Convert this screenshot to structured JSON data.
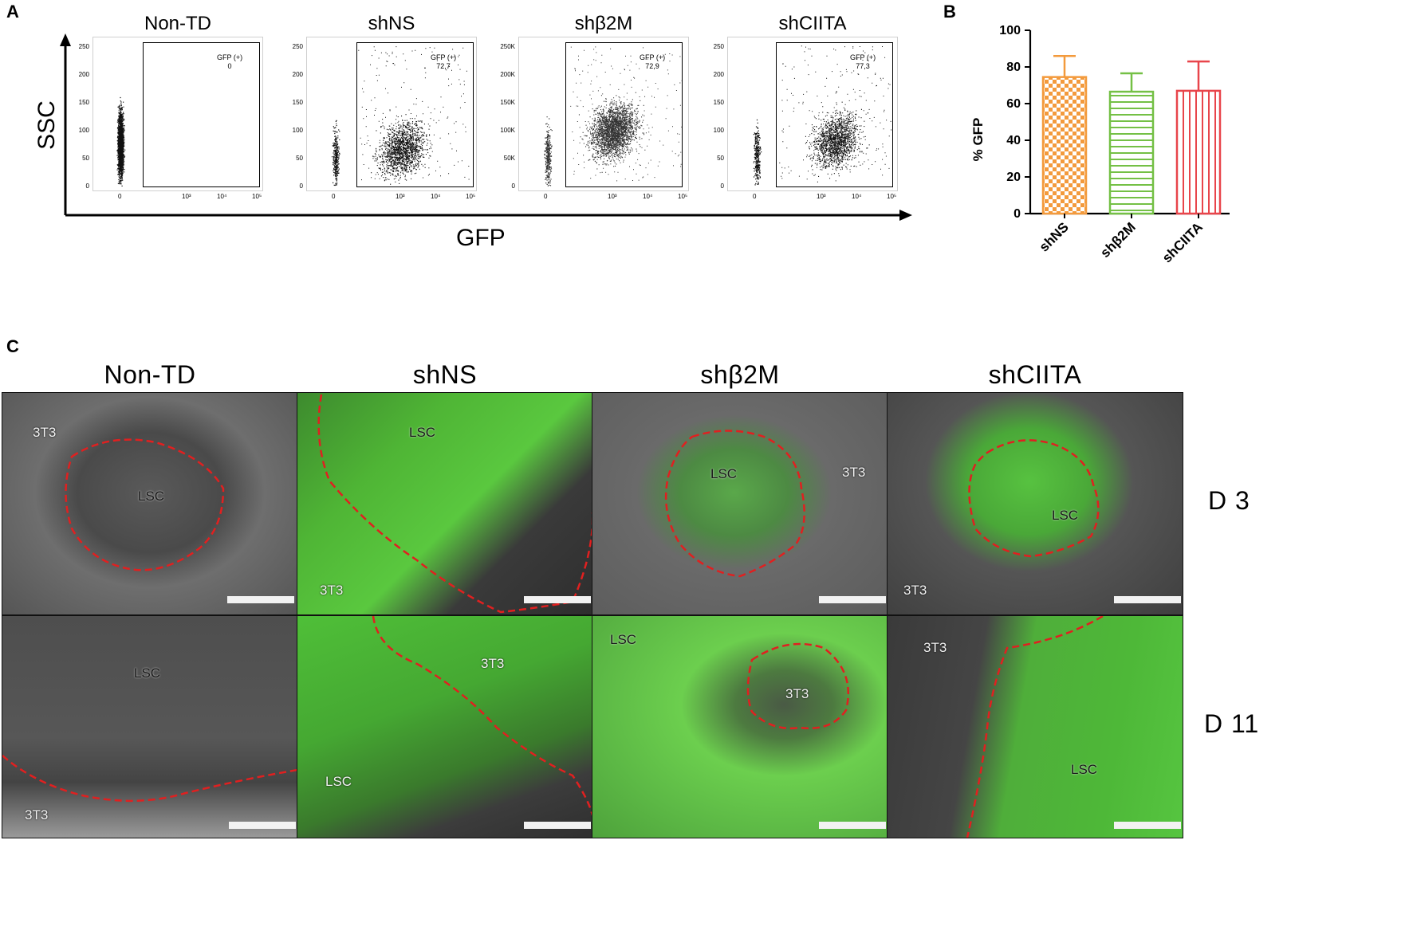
{
  "panels": {
    "a": "A",
    "b": "B",
    "c": "C"
  },
  "facs": {
    "ylabel": "SSC",
    "xlabel": "GFP",
    "plots": [
      {
        "title": "Non-TD",
        "gate_label": "GFP (+)",
        "gate_value": "0",
        "yticks": [
          "250",
          "200",
          "150",
          "100",
          "50",
          "0"
        ]
      },
      {
        "title": "shNS",
        "gate_label": "GFP (+)",
        "gate_value": "72,7",
        "yticks": [
          "250",
          "200",
          "150",
          "100",
          "50",
          "0"
        ]
      },
      {
        "title": "shβ2M",
        "gate_label": "GFP (+)",
        "gate_value": "72,9",
        "yticks": [
          "250K",
          "200K",
          "150K",
          "100K",
          "50K",
          "0"
        ]
      },
      {
        "title": "shCIITA",
        "gate_label": "GFP (+)",
        "gate_value": "77,3",
        "yticks": [
          "250",
          "200",
          "150",
          "100",
          "50",
          "0"
        ]
      }
    ],
    "xticks": [
      "0",
      "10³",
      "10⁴",
      "10⁵"
    ]
  },
  "chart_data": {
    "type": "bar",
    "categories": [
      "shNS",
      "shβ2M",
      "shCIITA"
    ],
    "values": [
      74.5,
      66.5,
      67.0
    ],
    "errors": [
      11.5,
      10.0,
      16.0
    ],
    "colors": [
      "#f39a3c",
      "#74c045",
      "#e8454b"
    ],
    "patterns": [
      "checker",
      "horizontal",
      "vertical"
    ],
    "ylabel": "% GFP",
    "yticks": [
      "0",
      "20",
      "40",
      "60",
      "80",
      "100"
    ],
    "ylim": [
      0,
      100
    ]
  },
  "images": {
    "columns": [
      "Non-TD",
      "shNS",
      "shβ2M",
      "shCIITA"
    ],
    "rows": [
      "D 3",
      "D 11"
    ],
    "labels": {
      "lsc": "LSC",
      "t3": "3T3"
    }
  }
}
